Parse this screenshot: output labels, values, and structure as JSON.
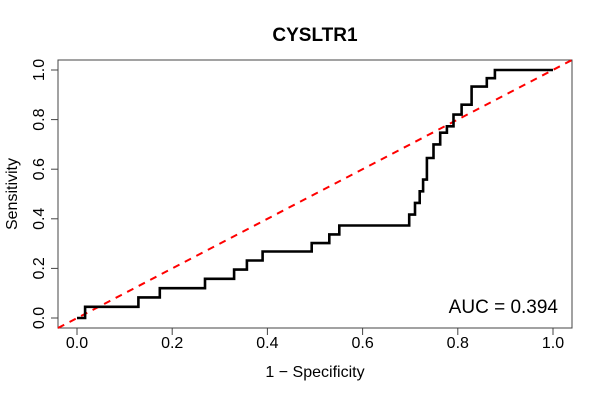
{
  "title": "CYSLTR1",
  "axes": {
    "xlabel": "1 − Specificity",
    "ylabel": "Sensitivity",
    "x_tick_labels": [
      "0.0",
      "0.2",
      "0.4",
      "0.6",
      "0.8",
      "1.0"
    ],
    "y_tick_labels": [
      "0.0",
      "0.2",
      "0.4",
      "0.6",
      "0.8",
      "1.0"
    ],
    "x_range": [
      0,
      1
    ],
    "y_range": [
      0,
      1
    ]
  },
  "annotation": {
    "auc_label": "AUC = 0.394",
    "auc_value": 0.394
  },
  "colors": {
    "roc_curve": "#000000",
    "diagonal": "#ff0000",
    "box": "#444444",
    "text": "#000000",
    "background": "#ffffff"
  },
  "chart_data": {
    "type": "line",
    "title": "CYSLTR1",
    "xlabel": "1 − Specificity",
    "ylabel": "Sensitivity",
    "xlim": [
      0,
      1
    ],
    "ylim": [
      0,
      1
    ],
    "grid": false,
    "legend": "none",
    "auc": 0.394,
    "series": [
      {
        "name": "ROC curve",
        "style": "step",
        "color": "#000000",
        "start": [
          0,
          0
        ],
        "steps": [
          [
            0.017,
            0.045
          ],
          [
            0.129,
            0.083
          ],
          [
            0.174,
            0.12
          ],
          [
            0.269,
            0.158
          ],
          [
            0.33,
            0.195
          ],
          [
            0.357,
            0.232
          ],
          [
            0.39,
            0.268
          ],
          [
            0.493,
            0.302
          ],
          [
            0.53,
            0.337
          ],
          [
            0.551,
            0.373
          ],
          [
            0.698,
            0.417
          ],
          [
            0.71,
            0.464
          ],
          [
            0.72,
            0.511
          ],
          [
            0.727,
            0.558
          ],
          [
            0.735,
            0.645
          ],
          [
            0.749,
            0.7
          ],
          [
            0.763,
            0.747
          ],
          [
            0.777,
            0.773
          ],
          [
            0.791,
            0.82
          ],
          [
            0.808,
            0.86
          ],
          [
            0.829,
            0.933
          ],
          [
            0.861,
            0.967
          ],
          [
            0.878,
            1.0
          ],
          [
            1.0,
            1.0
          ]
        ]
      },
      {
        "name": "chance diagonal",
        "style": "dashed",
        "color": "#ff0000",
        "points": [
          [
            0,
            0
          ],
          [
            1,
            1
          ]
        ]
      }
    ]
  }
}
